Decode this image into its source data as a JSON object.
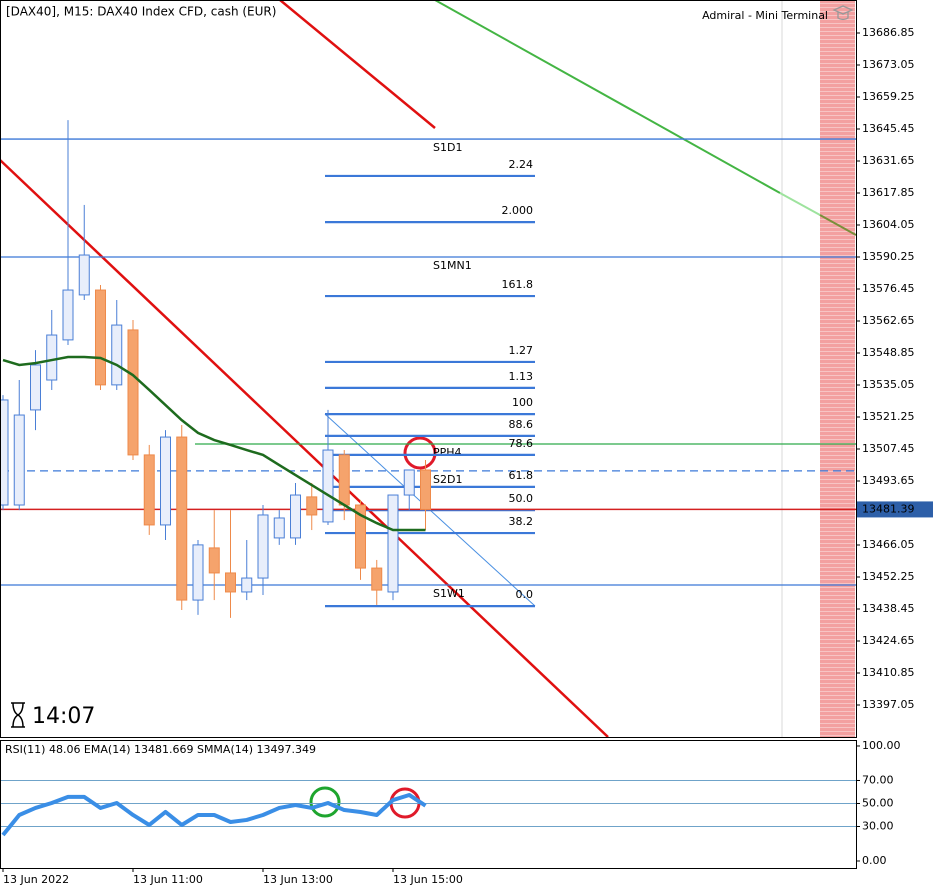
{
  "chart_data": [
    {
      "type": "candlestick",
      "title": "[DAX40], M15:  DAX40 Index CFD, cash (EUR)",
      "brand": "Admiral - Mini Terminal",
      "timer": "14:07",
      "categories": [
        "13 Jun 2022",
        null,
        null,
        null,
        null,
        null,
        null,
        null,
        "13 Jun 11:00",
        null,
        null,
        null,
        null,
        null,
        null,
        null,
        "13 Jun 13:00",
        null,
        null,
        null,
        null,
        null,
        null,
        null,
        "13 Jun 15:00",
        null,
        null
      ],
      "open": [
        13483.3,
        13483.3,
        13524.3,
        13537.2,
        13554.5,
        13573.9,
        13576.0,
        13535.1,
        13558.8,
        13504.9,
        13474.7,
        13512.6,
        13442.3,
        13464.8,
        13454.0,
        13445.8,
        13451.8,
        13469.1,
        13469.1,
        13486.8,
        13476.0,
        13504.9,
        13483.3,
        13456.1,
        13445.8,
        13487.6,
        13498.4
      ],
      "high": [
        13530.7,
        13537.2,
        13550.1,
        13567.4,
        13649.3,
        13612.7,
        13578.2,
        13571.7,
        13563.1,
        13509.2,
        13515.6,
        13517.8,
        13468.2,
        13481.1,
        13481.1,
        13468.2,
        13483.3,
        13481.1,
        13492.8,
        13492.8,
        13524.3,
        13507.0,
        13485.5,
        13459.6,
        13487.6,
        13498.4,
        13502.7
      ],
      "low": [
        13481.1,
        13481.1,
        13515.6,
        13532.9,
        13552.3,
        13571.7,
        13532.9,
        13532.9,
        13502.7,
        13470.4,
        13468.2,
        13438.0,
        13435.9,
        13442.3,
        13434.6,
        13442.3,
        13444.5,
        13466.1,
        13466.1,
        13472.5,
        13474.7,
        13476.8,
        13451.0,
        13440.2,
        13442.3,
        13481.1,
        13472.5
      ],
      "close": [
        13528.6,
        13522.1,
        13543.7,
        13556.6,
        13576.0,
        13591.1,
        13535.1,
        13560.9,
        13504.9,
        13474.7,
        13512.6,
        13442.3,
        13466.1,
        13454.0,
        13445.8,
        13451.8,
        13479.0,
        13477.7,
        13487.6,
        13479.0,
        13507.0,
        13483.3,
        13456.1,
        13446.6,
        13487.6,
        13498.4,
        13481.39
      ],
      "up_color": "#e8eefb",
      "down_color": "#f5a36c",
      "up_edge": "#4a7fd6",
      "down_edge": "#ee8a4a",
      "ma": {
        "color": "#1e6b1e",
        "values": [
          13545.8,
          13543.7,
          13544.5,
          13545.8,
          13547.1,
          13547.1,
          13546.7,
          13543.7,
          13539.3,
          13532.9,
          13526.4,
          13519.9,
          13514.4,
          13511.3,
          13509.2,
          13507.0,
          13504.9,
          13500.5,
          13496.2,
          13491.9,
          13487.6,
          13483.3,
          13479.0,
          13475.5,
          13472.5,
          13472.5,
          13472.5
        ]
      },
      "last_price": 13481.39,
      "levels": [
        {
          "label": "S1D1",
          "value": 13641.1,
          "color": "#3b78d8"
        },
        {
          "label": "S1MN1",
          "value": 13590.25,
          "color": "#3b78d8"
        },
        {
          "label": "PPH4",
          "value": 13509.6,
          "color": "#2eaa4a"
        },
        {
          "label": "S2D1",
          "value": 13498.0,
          "color": "#3b78d8",
          "dashed": true
        },
        {
          "label": "S1W1",
          "value": 13448.8,
          "color": "#3b78d8"
        }
      ],
      "fib": [
        {
          "label": "2.24",
          "value": 13625.2
        },
        {
          "label": "2.000",
          "value": 13605.3
        },
        {
          "label": "161.8",
          "value": 13573.4
        },
        {
          "label": "1.27",
          "value": 13545.0
        },
        {
          "label": "1.13",
          "value": 13533.8
        },
        {
          "label": "100",
          "value": 13522.5
        },
        {
          "label": "88.6",
          "value": 13513.1
        },
        {
          "label": "78.6",
          "value": 13504.9
        },
        {
          "label": "61.8",
          "value": 13491.1
        },
        {
          "label": "50.0",
          "value": 13481.1
        },
        {
          "label": "38.2",
          "value": 13471.2
        },
        {
          "label": "0.0",
          "value": 13439.7
        }
      ],
      "ylim": [
        13383.25,
        13701.08
      ],
      "yticks": [
        13686.85,
        13673.05,
        13659.25,
        13645.45,
        13631.65,
        13617.85,
        13604.05,
        13590.25,
        13576.45,
        13562.65,
        13548.85,
        13535.05,
        13521.25,
        13507.45,
        13493.65,
        13466.05,
        13452.25,
        13438.45,
        13424.65,
        13410.85,
        13397.05
      ]
    },
    {
      "type": "line",
      "title": "RSI(11) 48.06 EMA(14) 13481.669 SMMA(14) 13497.349",
      "series": [
        {
          "color": "#3a8ee6",
          "values": [
            22.6,
            40.0,
            46.1,
            50.4,
            55.7,
            55.7,
            46.1,
            50.4,
            40.0,
            31.3,
            42.6,
            31.3,
            40.0,
            40.0,
            33.9,
            35.7,
            40.0,
            46.1,
            48.7,
            46.1,
            50.4,
            44.3,
            42.6,
            40.0,
            53.0,
            57.4,
            48.06
          ]
        }
      ],
      "ylim": [
        -6.1,
        105.2
      ],
      "yticks": [
        {
          "value": 100,
          "label": "100.00"
        },
        {
          "value": 70,
          "label": "70.00"
        },
        {
          "value": 50,
          "label": "50.00"
        },
        {
          "value": 30,
          "label": "30.00"
        },
        {
          "value": 0,
          "label": "0.00"
        }
      ]
    }
  ]
}
